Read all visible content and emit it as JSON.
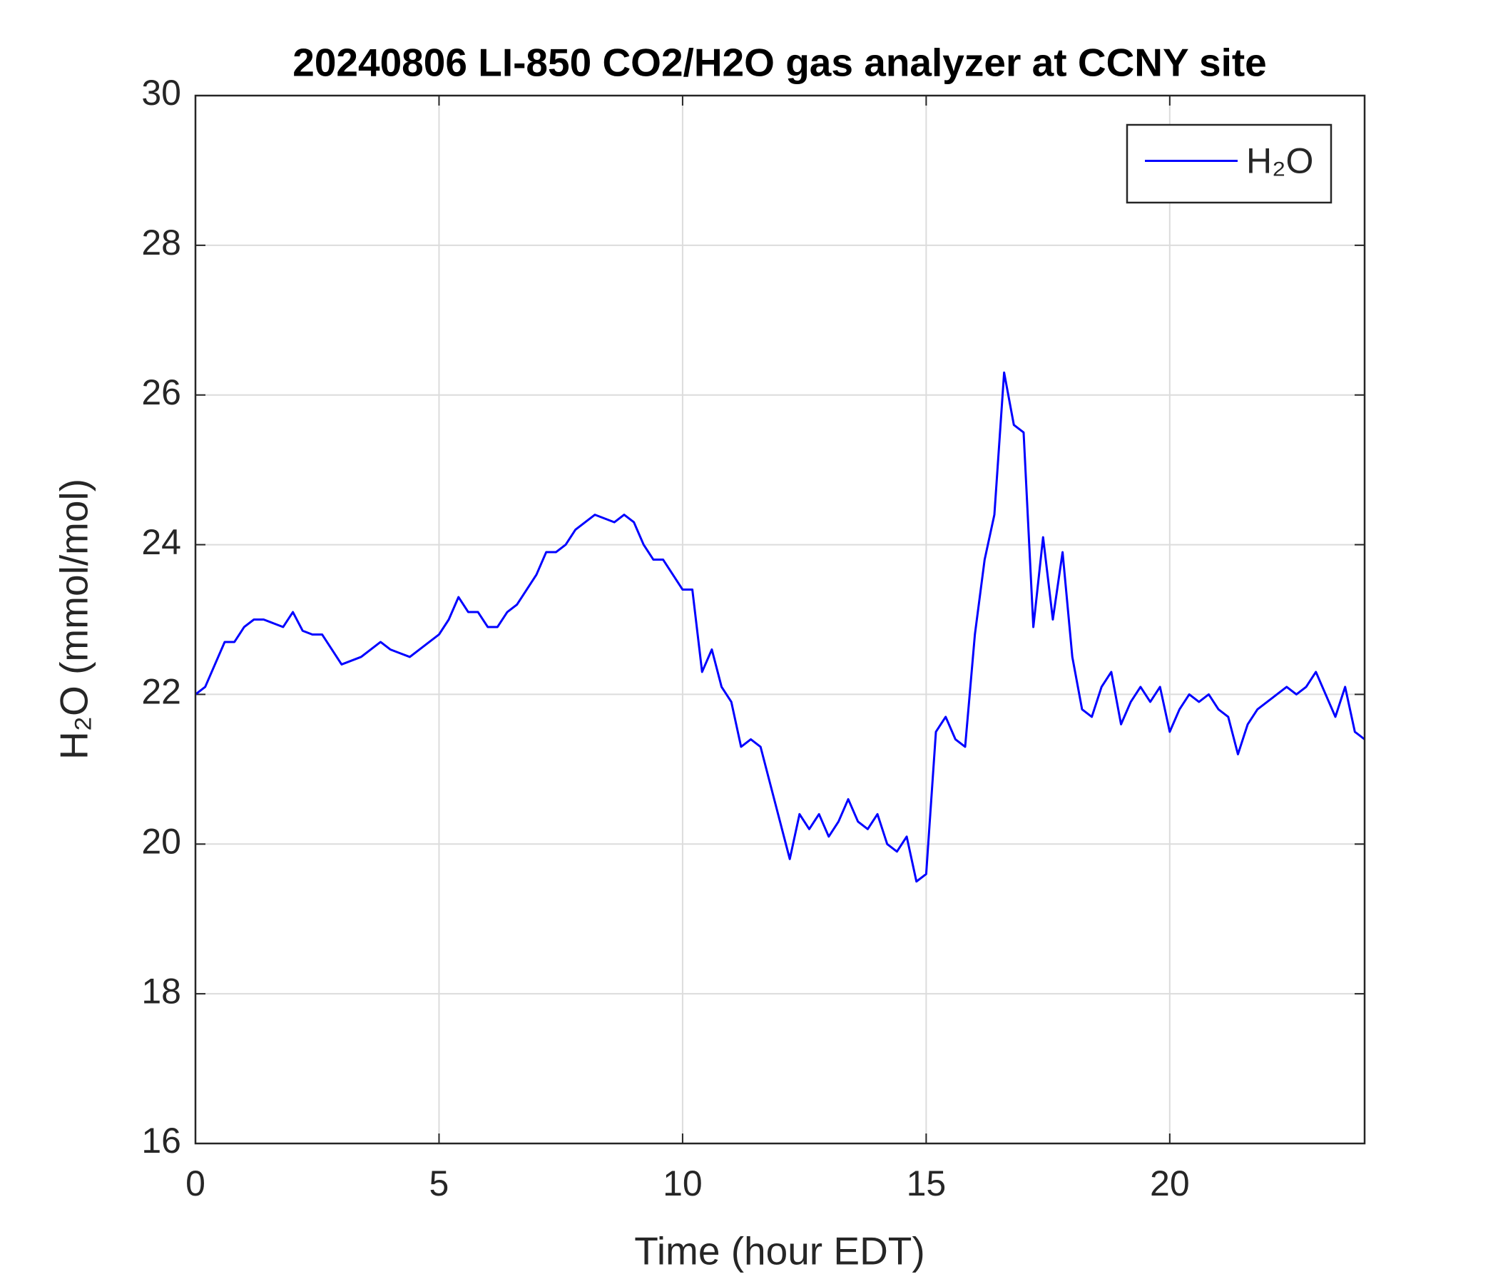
{
  "chart_data": {
    "type": "line",
    "title": "20240806 LI-850 CO2/H2O gas analyzer at CCNY site",
    "xlabel": "Time (hour EDT)",
    "ylabel": "H₂O (mmol/mol)",
    "xlim": [
      0,
      24
    ],
    "xticks": [
      0,
      5,
      10,
      15,
      20
    ],
    "ylim": [
      16,
      30
    ],
    "yticks": [
      16,
      18,
      20,
      22,
      24,
      26,
      28,
      30
    ],
    "grid": true,
    "legend": "top-right",
    "x": [
      0,
      0.2,
      0.4,
      0.6,
      0.8,
      1,
      1.2,
      1.4,
      1.6,
      1.8,
      2,
      2.2,
      2.4,
      2.6,
      2.8,
      3,
      3.2,
      3.4,
      3.6,
      3.8,
      4,
      4.2,
      4.4,
      4.6,
      4.8,
      5,
      5.2,
      5.4,
      5.6,
      5.8,
      6,
      6.2,
      6.4,
      6.6,
      6.8,
      7,
      7.2,
      7.4,
      7.6,
      7.8,
      8,
      8.2,
      8.4,
      8.6,
      8.8,
      9,
      9.2,
      9.4,
      9.6,
      9.8,
      10,
      10.2,
      10.4,
      10.6,
      10.8,
      11,
      11.2,
      11.4,
      11.6,
      11.8,
      12,
      12.2,
      12.4,
      12.6,
      12.8,
      13,
      13.2,
      13.4,
      13.6,
      13.8,
      14,
      14.2,
      14.4,
      14.6,
      14.8,
      15,
      15.2,
      15.4,
      15.6,
      15.8,
      16,
      16.2,
      16.4,
      16.6,
      16.8,
      17,
      17.2,
      17.4,
      17.6,
      17.8,
      18,
      18.2,
      18.4,
      18.6,
      18.8,
      19,
      19.2,
      19.4,
      19.6,
      19.8,
      20,
      20.2,
      20.4,
      20.6,
      20.8,
      21,
      21.2,
      21.4,
      21.6,
      21.8,
      22,
      22.2,
      22.4,
      22.6,
      22.8,
      23,
      23.2,
      23.4,
      23.6,
      23.8,
      24
    ],
    "series": [
      {
        "name": "H₂O",
        "color": "#0000ff",
        "values": [
          22.0,
          22.1,
          22.4,
          22.7,
          22.7,
          22.9,
          23.0,
          23.0,
          22.95,
          22.9,
          23.1,
          22.85,
          22.8,
          22.8,
          22.6,
          22.4,
          22.45,
          22.5,
          22.6,
          22.7,
          22.6,
          22.55,
          22.5,
          22.6,
          22.7,
          22.8,
          23.0,
          23.3,
          23.1,
          23.1,
          22.9,
          22.9,
          23.1,
          23.2,
          23.4,
          23.6,
          23.9,
          23.9,
          24.0,
          24.2,
          24.3,
          24.4,
          24.35,
          24.3,
          24.4,
          24.3,
          24.0,
          23.8,
          23.8,
          23.6,
          23.4,
          23.4,
          22.3,
          22.6,
          22.1,
          21.9,
          21.3,
          21.4,
          21.3,
          20.8,
          20.3,
          19.8,
          20.4,
          20.2,
          20.4,
          20.1,
          20.3,
          20.6,
          20.3,
          20.2,
          20.4,
          20.0,
          19.9,
          20.1,
          19.5,
          19.6,
          21.5,
          21.7,
          21.4,
          21.3,
          22.8,
          23.8,
          24.4,
          26.3,
          25.6,
          25.5,
          22.9,
          24.1,
          23.0,
          23.9,
          22.5,
          21.8,
          21.7,
          22.1,
          22.3,
          21.6,
          21.9,
          22.1,
          21.9,
          22.1,
          21.5,
          21.8,
          22.0,
          21.9,
          22.0,
          21.8,
          21.7,
          21.2,
          21.6,
          21.8,
          21.9,
          22.0,
          22.1,
          22.0,
          22.1,
          22.3,
          22.0,
          21.7,
          22.1,
          21.5,
          21.4
        ]
      }
    ]
  }
}
